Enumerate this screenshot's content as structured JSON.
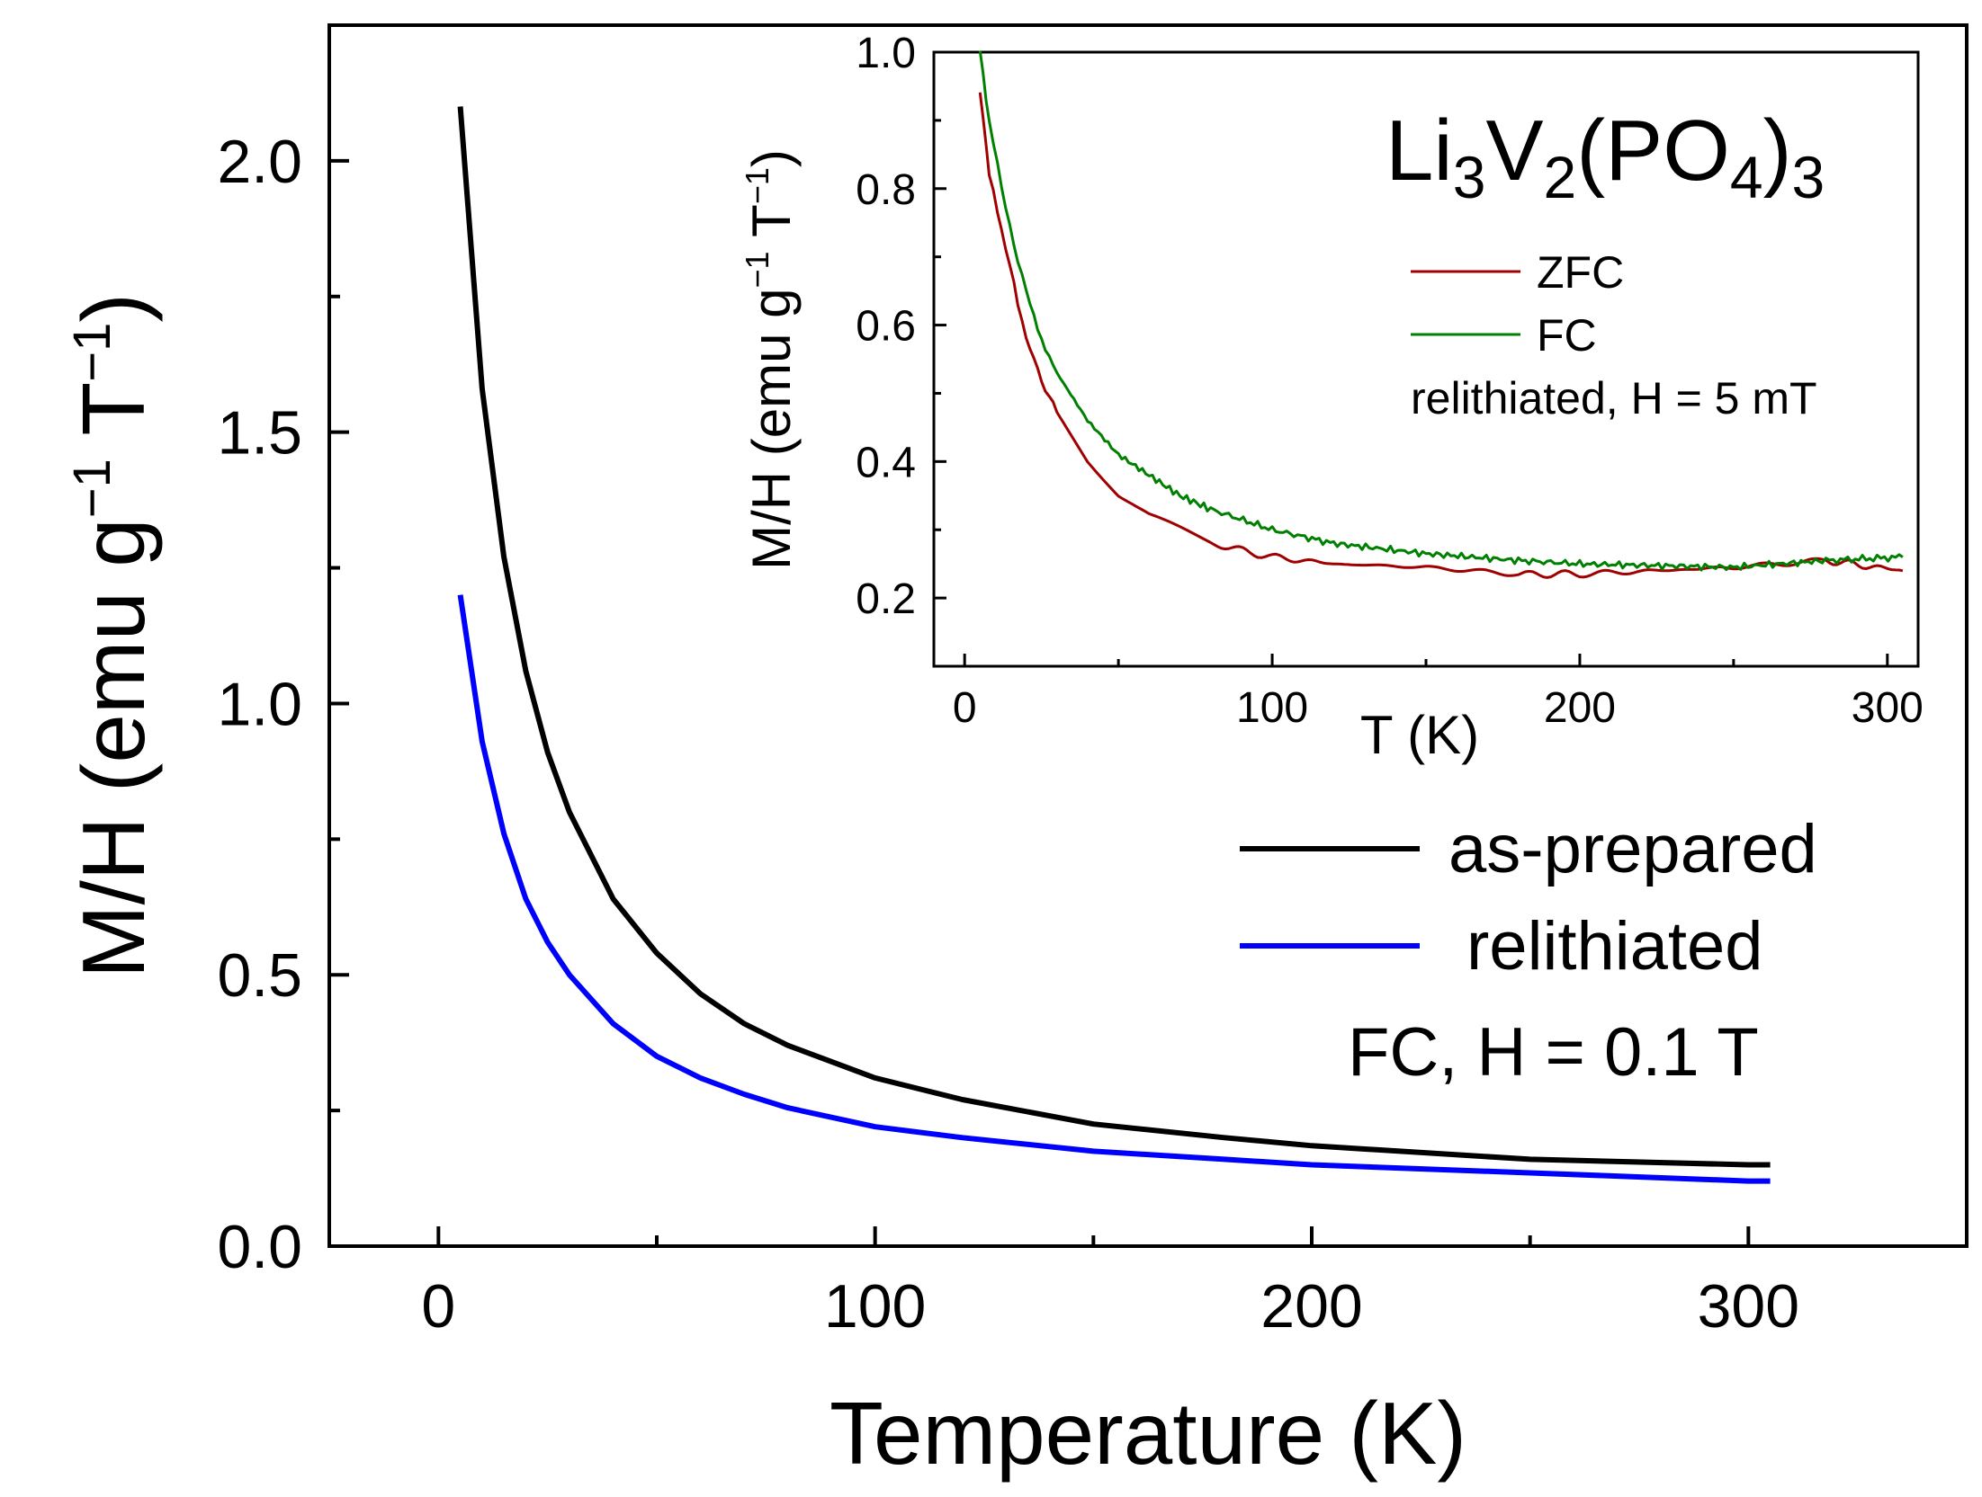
{
  "chart_data": [
    {
      "type": "line",
      "title": "",
      "xlabel": "Temperature (K)",
      "ylabel": "M/H (emu g⁻¹ T⁻¹)",
      "ylabel_parts": {
        "base": "M/H (emu g",
        "exp1": "−1",
        "mid": " T",
        "exp2": "−1",
        "end": ")"
      },
      "xlim": [
        -25,
        350
      ],
      "ylim": [
        0,
        2.25
      ],
      "xticks": [
        0,
        100,
        200,
        300
      ],
      "yticks": [
        0.0,
        0.5,
        1.0,
        1.5,
        2.0
      ],
      "xtick_labels": [
        "0",
        "100",
        "200",
        "300"
      ],
      "ytick_labels": [
        "0.0",
        "0.5",
        "1.0",
        "1.5",
        "2.0"
      ],
      "legend_position": "middle-right",
      "annotation": "FC, H = 0.1 T",
      "series": [
        {
          "name": "as-prepared",
          "color": "#000000",
          "x": [
            5,
            10,
            15,
            20,
            25,
            30,
            40,
            50,
            60,
            70,
            80,
            100,
            120,
            150,
            180,
            200,
            250,
            300,
            305
          ],
          "y": [
            2.1,
            1.58,
            1.27,
            1.06,
            0.91,
            0.8,
            0.64,
            0.54,
            0.465,
            0.41,
            0.37,
            0.31,
            0.27,
            0.225,
            0.2,
            0.185,
            0.16,
            0.15,
            0.15
          ]
        },
        {
          "name": "relithiated",
          "color": "#0000ff",
          "x": [
            5,
            10,
            15,
            20,
            25,
            30,
            40,
            50,
            60,
            70,
            80,
            100,
            120,
            150,
            180,
            200,
            250,
            300,
            305
          ],
          "y": [
            1.2,
            0.93,
            0.76,
            0.64,
            0.56,
            0.5,
            0.41,
            0.35,
            0.31,
            0.28,
            0.255,
            0.22,
            0.2,
            0.175,
            0.16,
            0.15,
            0.135,
            0.12,
            0.12
          ]
        }
      ]
    },
    {
      "type": "line",
      "title": "",
      "xlabel": "T (K)",
      "ylabel": "M/H (emu g⁻¹ T⁻¹)",
      "ylabel_parts": {
        "base": "M/H (emu g",
        "exp1": "−1",
        "mid": " T",
        "exp2": "−1",
        "end": ")"
      },
      "xlim": [
        -10,
        310
      ],
      "ylim": [
        0.1,
        1.0
      ],
      "xticks": [
        0,
        100,
        200,
        300
      ],
      "yticks": [
        0.2,
        0.4,
        0.6,
        0.8,
        1.0
      ],
      "xtick_labels": [
        "0",
        "100",
        "200",
        "300"
      ],
      "ytick_labels": [
        "0.2",
        "0.4",
        "0.6",
        "0.8",
        "1.0"
      ],
      "legend_position": "top-right",
      "annotation": "relithiated, H = 5 mT",
      "formula": {
        "parts": [
          "Li",
          "3",
          "V",
          "2",
          "(PO",
          "4",
          ")",
          "3"
        ]
      },
      "series": [
        {
          "name": "ZFC",
          "color": "#a00000",
          "x": [
            5,
            8,
            12,
            16,
            20,
            25,
            30,
            40,
            50,
            60,
            70,
            80,
            100,
            120,
            150,
            180,
            200,
            250,
            280,
            305
          ],
          "y": [
            0.94,
            0.82,
            0.74,
            0.66,
            0.58,
            0.52,
            0.47,
            0.4,
            0.35,
            0.32,
            0.3,
            0.28,
            0.26,
            0.25,
            0.245,
            0.235,
            0.235,
            0.245,
            0.255,
            0.24
          ]
        },
        {
          "name": "FC",
          "color": "#008000",
          "x": [
            5,
            8,
            12,
            16,
            20,
            25,
            30,
            40,
            50,
            60,
            70,
            80,
            100,
            120,
            150,
            180,
            200,
            250,
            280,
            305
          ],
          "y": [
            1.0,
            0.9,
            0.8,
            0.72,
            0.65,
            0.58,
            0.53,
            0.46,
            0.41,
            0.38,
            0.35,
            0.33,
            0.3,
            0.28,
            0.265,
            0.255,
            0.25,
            0.245,
            0.255,
            0.26
          ]
        }
      ]
    }
  ]
}
